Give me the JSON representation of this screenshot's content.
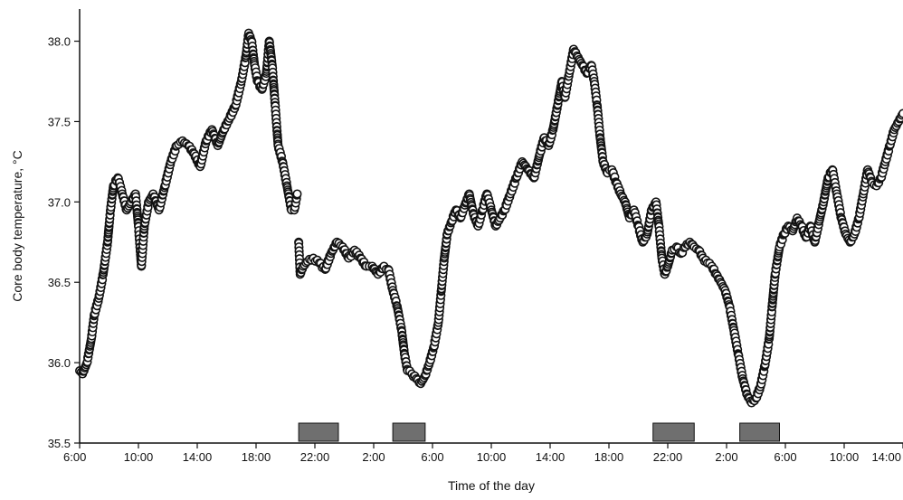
{
  "chart_data": {
    "type": "scatter",
    "title": "",
    "xlabel": "Time of the day",
    "ylabel": "Core body temperature, °C",
    "ylim": [
      35.5,
      38.2
    ],
    "xlim_hours": [
      6,
      62
    ],
    "x_ticks": [
      {
        "hour": 6,
        "label": "6:00"
      },
      {
        "hour": 10,
        "label": "10:00"
      },
      {
        "hour": 14,
        "label": "14:00"
      },
      {
        "hour": 18,
        "label": "18:00"
      },
      {
        "hour": 22,
        "label": "22:00"
      },
      {
        "hour": 26,
        "label": "2:00"
      },
      {
        "hour": 30,
        "label": "6:00"
      },
      {
        "hour": 34,
        "label": "10:00"
      },
      {
        "hour": 38,
        "label": "14:00"
      },
      {
        "hour": 42,
        "label": "18:00"
      },
      {
        "hour": 46,
        "label": "22:00"
      },
      {
        "hour": 50,
        "label": "2:00"
      },
      {
        "hour": 54,
        "label": "6:00"
      },
      {
        "hour": 58,
        "label": "10:00"
      },
      {
        "hour": 62,
        "label": "14:00"
      }
    ],
    "y_ticks": [
      {
        "value": 35.5,
        "label": "35.5"
      },
      {
        "value": 36.0,
        "label": "36.0"
      },
      {
        "value": 36.5,
        "label": "36.5"
      },
      {
        "value": 37.0,
        "label": "37.0"
      },
      {
        "value": 37.5,
        "label": "37.5"
      },
      {
        "value": 38.0,
        "label": "38.0"
      }
    ],
    "grid": false,
    "legend": "none",
    "colors": {
      "marker_fill": "#ffffff",
      "marker_stroke": "#111111",
      "sleep_bar_fill": "#6f6f6f",
      "sleep_bar_stroke": "#111111",
      "axis": "#111111"
    },
    "series": [
      {
        "values": [
          [
            6.0,
            35.95
          ],
          [
            6.2,
            35.93
          ],
          [
            6.5,
            36.0
          ],
          [
            6.8,
            36.15
          ],
          [
            7.0,
            36.3
          ],
          [
            7.3,
            36.4
          ],
          [
            7.6,
            36.55
          ],
          [
            7.9,
            36.75
          ],
          [
            8.1,
            36.95
          ],
          [
            8.3,
            37.1
          ],
          [
            8.6,
            37.15
          ],
          [
            8.9,
            37.05
          ],
          [
            9.2,
            36.95
          ],
          [
            9.5,
            37.0
          ],
          [
            9.8,
            37.05
          ],
          [
            10.0,
            36.85
          ],
          [
            10.2,
            36.6
          ],
          [
            10.4,
            36.85
          ],
          [
            10.7,
            37.0
          ],
          [
            11.0,
            37.05
          ],
          [
            11.4,
            36.95
          ],
          [
            11.8,
            37.1
          ],
          [
            12.2,
            37.25
          ],
          [
            12.6,
            37.35
          ],
          [
            13.0,
            37.38
          ],
          [
            13.4,
            37.35
          ],
          [
            13.8,
            37.3
          ],
          [
            14.2,
            37.22
          ],
          [
            14.6,
            37.38
          ],
          [
            15.0,
            37.45
          ],
          [
            15.4,
            37.35
          ],
          [
            15.8,
            37.45
          ],
          [
            16.2,
            37.52
          ],
          [
            16.6,
            37.6
          ],
          [
            17.0,
            37.75
          ],
          [
            17.3,
            37.9
          ],
          [
            17.5,
            38.05
          ],
          [
            17.7,
            38.0
          ],
          [
            17.9,
            37.85
          ],
          [
            18.1,
            37.75
          ],
          [
            18.4,
            37.7
          ],
          [
            18.7,
            37.8
          ],
          [
            18.9,
            38.0
          ],
          [
            19.1,
            37.85
          ],
          [
            19.3,
            37.6
          ],
          [
            19.5,
            37.35
          ],
          [
            19.8,
            37.25
          ],
          [
            20.1,
            37.1
          ],
          [
            20.4,
            36.95
          ],
          [
            20.6,
            36.95
          ],
          [
            20.8,
            37.05
          ],
          [
            20.9,
            36.75
          ],
          [
            21.0,
            36.55
          ],
          [
            21.2,
            36.6
          ],
          [
            21.5,
            36.63
          ],
          [
            21.9,
            36.65
          ],
          [
            22.3,
            36.62
          ],
          [
            22.7,
            36.58
          ],
          [
            23.1,
            36.68
          ],
          [
            23.5,
            36.75
          ],
          [
            23.9,
            36.72
          ],
          [
            24.3,
            36.65
          ],
          [
            24.7,
            36.7
          ],
          [
            25.1,
            36.65
          ],
          [
            25.5,
            36.6
          ],
          [
            25.9,
            36.6
          ],
          [
            26.3,
            36.55
          ],
          [
            26.7,
            36.6
          ],
          [
            27.0,
            36.58
          ],
          [
            27.3,
            36.45
          ],
          [
            27.6,
            36.35
          ],
          [
            27.9,
            36.2
          ],
          [
            28.1,
            36.05
          ],
          [
            28.3,
            35.95
          ],
          [
            28.6,
            35.93
          ],
          [
            28.9,
            35.9
          ],
          [
            29.2,
            35.87
          ],
          [
            29.5,
            35.92
          ],
          [
            29.8,
            36.0
          ],
          [
            30.1,
            36.1
          ],
          [
            30.4,
            36.25
          ],
          [
            30.6,
            36.45
          ],
          [
            30.8,
            36.65
          ],
          [
            31.0,
            36.8
          ],
          [
            31.3,
            36.88
          ],
          [
            31.6,
            36.95
          ],
          [
            31.9,
            36.9
          ],
          [
            32.2,
            36.98
          ],
          [
            32.5,
            37.05
          ],
          [
            32.8,
            36.92
          ],
          [
            33.1,
            36.85
          ],
          [
            33.4,
            36.95
          ],
          [
            33.7,
            37.05
          ],
          [
            34.0,
            36.95
          ],
          [
            34.3,
            36.85
          ],
          [
            34.6,
            36.9
          ],
          [
            34.9,
            36.95
          ],
          [
            35.3,
            37.05
          ],
          [
            35.7,
            37.15
          ],
          [
            36.1,
            37.25
          ],
          [
            36.5,
            37.2
          ],
          [
            36.9,
            37.15
          ],
          [
            37.3,
            37.3
          ],
          [
            37.6,
            37.4
          ],
          [
            37.9,
            37.35
          ],
          [
            38.2,
            37.45
          ],
          [
            38.5,
            37.6
          ],
          [
            38.8,
            37.75
          ],
          [
            39.0,
            37.65
          ],
          [
            39.3,
            37.8
          ],
          [
            39.6,
            37.95
          ],
          [
            39.9,
            37.9
          ],
          [
            40.2,
            37.85
          ],
          [
            40.5,
            37.8
          ],
          [
            40.8,
            37.85
          ],
          [
            41.0,
            37.75
          ],
          [
            41.2,
            37.6
          ],
          [
            41.4,
            37.4
          ],
          [
            41.6,
            37.25
          ],
          [
            41.9,
            37.18
          ],
          [
            42.2,
            37.2
          ],
          [
            42.5,
            37.12
          ],
          [
            42.8,
            37.05
          ],
          [
            43.1,
            37.0
          ],
          [
            43.4,
            36.9
          ],
          [
            43.7,
            36.95
          ],
          [
            44.0,
            36.85
          ],
          [
            44.3,
            36.75
          ],
          [
            44.6,
            36.8
          ],
          [
            44.9,
            36.95
          ],
          [
            45.2,
            37.0
          ],
          [
            45.4,
            36.85
          ],
          [
            45.6,
            36.65
          ],
          [
            45.8,
            36.55
          ],
          [
            46.0,
            36.6
          ],
          [
            46.3,
            36.7
          ],
          [
            46.6,
            36.72
          ],
          [
            46.9,
            36.68
          ],
          [
            47.2,
            36.72
          ],
          [
            47.5,
            36.75
          ],
          [
            47.8,
            36.72
          ],
          [
            48.1,
            36.7
          ],
          [
            48.4,
            36.65
          ],
          [
            48.7,
            36.62
          ],
          [
            49.0,
            36.6
          ],
          [
            49.3,
            36.55
          ],
          [
            49.6,
            36.5
          ],
          [
            49.9,
            36.45
          ],
          [
            50.2,
            36.35
          ],
          [
            50.5,
            36.2
          ],
          [
            50.8,
            36.05
          ],
          [
            51.1,
            35.9
          ],
          [
            51.4,
            35.8
          ],
          [
            51.7,
            35.75
          ],
          [
            52.0,
            35.78
          ],
          [
            52.3,
            35.85
          ],
          [
            52.6,
            35.98
          ],
          [
            52.9,
            36.15
          ],
          [
            53.1,
            36.35
          ],
          [
            53.3,
            36.55
          ],
          [
            53.6,
            36.72
          ],
          [
            53.9,
            36.8
          ],
          [
            54.2,
            36.85
          ],
          [
            54.5,
            36.82
          ],
          [
            54.8,
            36.9
          ],
          [
            55.1,
            36.85
          ],
          [
            55.4,
            36.78
          ],
          [
            55.7,
            36.85
          ],
          [
            56.0,
            36.75
          ],
          [
            56.3,
            36.88
          ],
          [
            56.6,
            37.0
          ],
          [
            56.9,
            37.15
          ],
          [
            57.2,
            37.2
          ],
          [
            57.5,
            37.05
          ],
          [
            57.8,
            36.9
          ],
          [
            58.1,
            36.8
          ],
          [
            58.4,
            36.75
          ],
          [
            58.7,
            36.8
          ],
          [
            59.0,
            36.9
          ],
          [
            59.3,
            37.05
          ],
          [
            59.6,
            37.2
          ],
          [
            59.9,
            37.12
          ],
          [
            60.2,
            37.1
          ],
          [
            60.5,
            37.15
          ],
          [
            60.8,
            37.25
          ],
          [
            61.1,
            37.35
          ],
          [
            61.4,
            37.45
          ],
          [
            61.7,
            37.5
          ],
          [
            62.0,
            37.55
          ]
        ]
      }
    ],
    "sleep_bars": [
      {
        "start": 20.9,
        "end": 23.6
      },
      {
        "start": 27.3,
        "end": 29.5
      },
      {
        "start": 45.0,
        "end": 47.8
      },
      {
        "start": 50.9,
        "end": 53.6
      }
    ]
  }
}
